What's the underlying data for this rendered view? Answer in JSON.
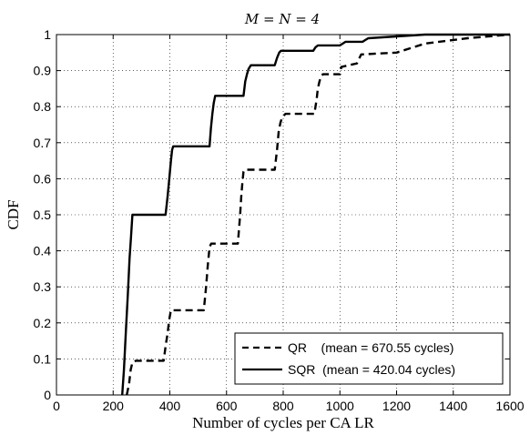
{
  "chart_data": {
    "type": "line",
    "title": "M = N = 4",
    "xlabel": "Number of cycles per CA LR",
    "ylabel": "CDF",
    "xlim": [
      0,
      1600
    ],
    "ylim": [
      0,
      1
    ],
    "xticks": [
      0,
      200,
      400,
      600,
      800,
      1000,
      1200,
      1400,
      1600
    ],
    "yticks": [
      0,
      0.1,
      0.2,
      0.3,
      0.4,
      0.5,
      0.6,
      0.7,
      0.8,
      0.9,
      1
    ],
    "grid": true,
    "legend_position": "bottom-right",
    "series": [
      {
        "name": "QR",
        "legend_label": "QR    (mean = 670.55 cycles)",
        "line_style": "dashed",
        "x": [
          248,
          256,
          262,
          268,
          280,
          378,
          386,
          392,
          398,
          404,
          520,
          528,
          534,
          540,
          546,
          640,
          648,
          652,
          656,
          660,
          664,
          770,
          778,
          784,
          790,
          796,
          802,
          808,
          910,
          918,
          922,
          928,
          934,
          940,
          1000,
          1005,
          1060,
          1075,
          1200,
          1300,
          1450,
          1600
        ],
        "y": [
          0.0,
          0.03,
          0.07,
          0.09,
          0.095,
          0.095,
          0.14,
          0.17,
          0.21,
          0.235,
          0.235,
          0.3,
          0.36,
          0.41,
          0.42,
          0.42,
          0.5,
          0.55,
          0.59,
          0.62,
          0.625,
          0.625,
          0.68,
          0.73,
          0.755,
          0.77,
          0.775,
          0.78,
          0.78,
          0.82,
          0.85,
          0.87,
          0.885,
          0.89,
          0.89,
          0.91,
          0.92,
          0.945,
          0.95,
          0.975,
          0.99,
          1.0
        ]
      },
      {
        "name": "SQR",
        "legend_label": "SQR  (mean = 420.04 cycles)",
        "line_style": "solid",
        "x": [
          232,
          238,
          245,
          252,
          258,
          263,
          268,
          272,
          282,
          385,
          392,
          398,
          404,
          408,
          412,
          540,
          545,
          550,
          555,
          560,
          660,
          666,
          672,
          678,
          682,
          686,
          770,
          778,
          786,
          792,
          906,
          914,
          922,
          1000,
          1010,
          1020,
          1080,
          1090,
          1100,
          1200,
          1300,
          1400,
          1600
        ],
        "y": [
          0.0,
          0.07,
          0.18,
          0.28,
          0.38,
          0.44,
          0.5,
          0.5,
          0.5,
          0.5,
          0.55,
          0.6,
          0.65,
          0.68,
          0.69,
          0.69,
          0.74,
          0.78,
          0.81,
          0.83,
          0.83,
          0.87,
          0.89,
          0.905,
          0.91,
          0.915,
          0.915,
          0.935,
          0.95,
          0.955,
          0.955,
          0.965,
          0.97,
          0.97,
          0.975,
          0.98,
          0.98,
          0.985,
          0.99,
          0.995,
          1.0,
          1.0,
          1.0
        ]
      }
    ]
  }
}
